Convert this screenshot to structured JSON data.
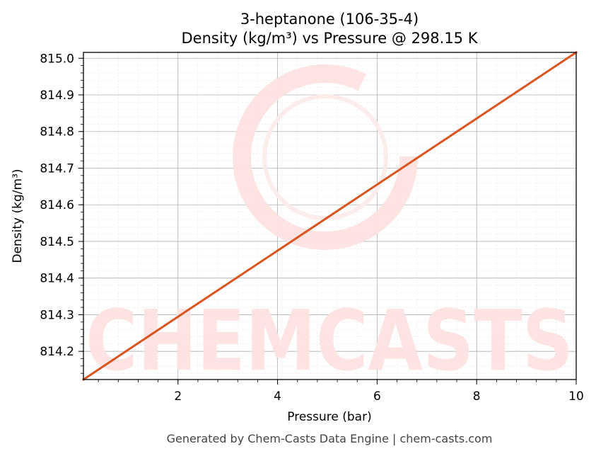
{
  "chart_data": {
    "type": "line",
    "title": "3-heptanone (106-35-4)",
    "subtitle": "Density (kg/m³) vs Pressure @ 298.15 K",
    "xlabel": "Pressure (bar)",
    "ylabel": "Density (kg/m³)",
    "xlim": [
      0.1,
      10
    ],
    "ylim": [
      814.123,
      815.016
    ],
    "x_ticks": [
      2,
      4,
      6,
      8,
      10
    ],
    "x_tick_labels": [
      "2",
      "4",
      "6",
      "8",
      "10"
    ],
    "y_ticks": [
      814.2,
      814.3,
      814.4,
      814.5,
      814.6,
      814.7,
      814.8,
      814.9,
      815.0
    ],
    "y_tick_labels": [
      "814.2",
      "814.3",
      "814.4",
      "814.5",
      "814.6",
      "814.7",
      "814.8",
      "814.9",
      "815.0"
    ],
    "grid": true,
    "series": [
      {
        "x": [
          0.1,
          10
        ],
        "y": [
          814.123,
          815.016
        ],
        "color": "#d9541e"
      }
    ]
  },
  "watermark": {
    "text": "CHEMCASTS",
    "color": "#fde3e1"
  },
  "footer": "Generated by Chem-Casts Data Engine | chem-casts.com"
}
